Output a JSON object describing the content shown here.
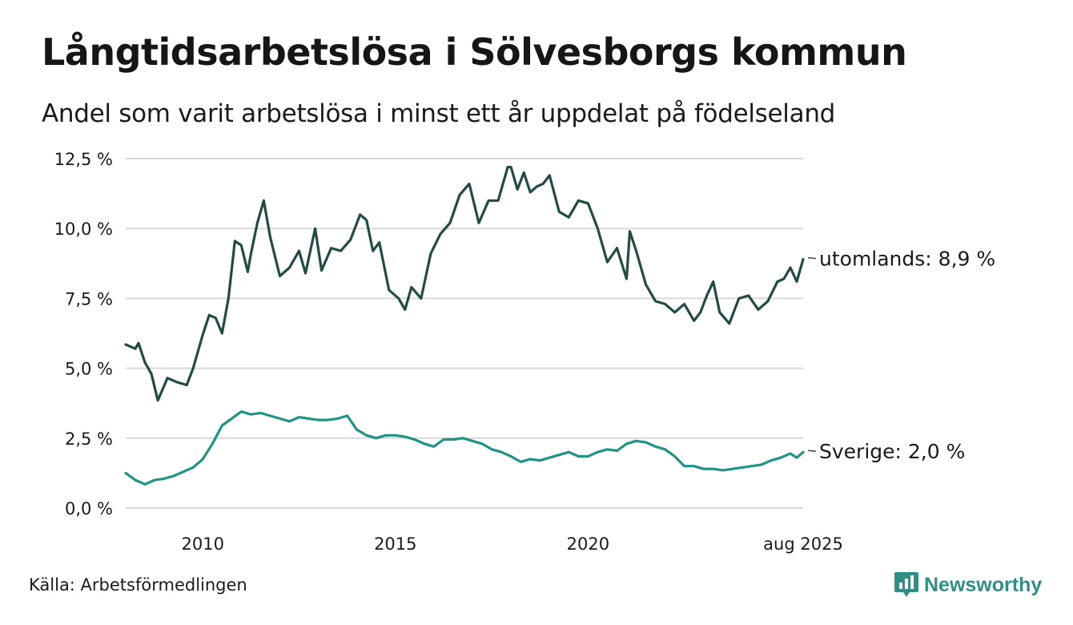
{
  "title": "Långtidsarbetslösa i Sölvesborgs kommun",
  "subtitle": "Andel som varit arbetslösa i minst ett år uppdelat på födelseland",
  "source": "Källa: Arbetsförmedlingen",
  "brand": "Newsworthy",
  "colors": {
    "utomlands": "#234b45",
    "sverige": "#1f9484",
    "grid": "#d9d9d9",
    "brand": "#2f8f86"
  },
  "chart_data": {
    "type": "line",
    "title": "Långtidsarbetslösa i Sölvesborgs kommun",
    "subtitle": "Andel som varit arbetslösa i minst ett år uppdelat på födelseland",
    "xlabel": "",
    "ylabel": "",
    "ylim": [
      0,
      12.5
    ],
    "y_ticks": [
      0,
      2.5,
      5.0,
      7.5,
      10.0,
      12.5
    ],
    "y_tick_labels": [
      "0,0 %",
      "2,5 %",
      "5,0 %",
      "7,5 %",
      "10,0 %",
      "12,5 %"
    ],
    "x_ticks": [
      "2010",
      "2015",
      "2020",
      "aug 2025"
    ],
    "x_tick_values": [
      "2010-01",
      "2015-01",
      "2020-01",
      "2025-08"
    ],
    "grid": "horizontal",
    "legend": "direct labels at line ends (right)",
    "series": [
      {
        "name": "utomlands",
        "end_label": "utomlands: 8,9 %",
        "color": "#234b45",
        "x": [
          "2008-01",
          "2008-04",
          "2008-05",
          "2008-07",
          "2008-09",
          "2008-11",
          "2009-02",
          "2009-05",
          "2009-08",
          "2009-10",
          "2010-01",
          "2010-03",
          "2010-05",
          "2010-07",
          "2010-09",
          "2010-11",
          "2011-01",
          "2011-03",
          "2011-04",
          "2011-06",
          "2011-08",
          "2011-10",
          "2012-01",
          "2012-04",
          "2012-07",
          "2012-09",
          "2012-12",
          "2013-02",
          "2013-05",
          "2013-08",
          "2013-11",
          "2014-02",
          "2014-04",
          "2014-06",
          "2014-08",
          "2014-11",
          "2015-02",
          "2015-04",
          "2015-06",
          "2015-09",
          "2015-12",
          "2016-03",
          "2016-06",
          "2016-09",
          "2016-12",
          "2017-03",
          "2017-06",
          "2017-09",
          "2017-12",
          "2018-01",
          "2018-03",
          "2018-05",
          "2018-07",
          "2018-09",
          "2018-11",
          "2019-01",
          "2019-04",
          "2019-07",
          "2019-10",
          "2020-01",
          "2020-04",
          "2020-07",
          "2020-10",
          "2021-01",
          "2021-02",
          "2021-04",
          "2021-07",
          "2021-10",
          "2022-01",
          "2022-04",
          "2022-07",
          "2022-10",
          "2022-12",
          "2023-02",
          "2023-04",
          "2023-06",
          "2023-09",
          "2023-12",
          "2024-03",
          "2024-06",
          "2024-09",
          "2024-12",
          "2025-02",
          "2025-04",
          "2025-06",
          "2025-08"
        ],
        "values": [
          5.85,
          5.7,
          5.9,
          5.2,
          4.8,
          3.85,
          4.65,
          4.5,
          4.4,
          5.0,
          6.2,
          6.9,
          6.8,
          6.25,
          7.5,
          9.55,
          9.4,
          8.45,
          9.1,
          10.2,
          11.0,
          9.7,
          8.3,
          8.6,
          9.2,
          8.4,
          10.0,
          8.5,
          9.3,
          9.2,
          9.6,
          10.5,
          10.3,
          9.2,
          9.5,
          7.8,
          7.5,
          7.1,
          7.9,
          7.5,
          9.1,
          9.8,
          10.2,
          11.2,
          11.6,
          10.2,
          11.0,
          11.0,
          12.2,
          12.2,
          11.4,
          12.0,
          11.3,
          11.5,
          11.6,
          11.9,
          10.6,
          10.4,
          11.0,
          10.9,
          10.0,
          8.8,
          9.3,
          8.2,
          9.9,
          9.2,
          8.0,
          7.4,
          7.3,
          7.0,
          7.3,
          6.7,
          7.0,
          7.6,
          8.1,
          7.0,
          6.6,
          7.5,
          7.6,
          7.1,
          7.4,
          8.1,
          8.2,
          8.6,
          8.1,
          8.9
        ]
      },
      {
        "name": "Sverige",
        "end_label": "Sverige: 2,0 %",
        "color": "#1f9484",
        "x": [
          "2008-01",
          "2008-04",
          "2008-07",
          "2008-10",
          "2009-01",
          "2009-04",
          "2009-07",
          "2009-10",
          "2010-01",
          "2010-04",
          "2010-07",
          "2010-10",
          "2011-01",
          "2011-04",
          "2011-07",
          "2011-10",
          "2012-01",
          "2012-04",
          "2012-07",
          "2012-10",
          "2013-01",
          "2013-04",
          "2013-07",
          "2013-10",
          "2014-01",
          "2014-04",
          "2014-07",
          "2014-10",
          "2015-01",
          "2015-04",
          "2015-07",
          "2015-10",
          "2016-01",
          "2016-04",
          "2016-07",
          "2016-10",
          "2017-01",
          "2017-04",
          "2017-07",
          "2017-10",
          "2018-01",
          "2018-04",
          "2018-07",
          "2018-10",
          "2019-01",
          "2019-04",
          "2019-07",
          "2019-10",
          "2020-01",
          "2020-04",
          "2020-07",
          "2020-10",
          "2021-01",
          "2021-04",
          "2021-07",
          "2021-10",
          "2022-01",
          "2022-04",
          "2022-07",
          "2022-10",
          "2023-01",
          "2023-04",
          "2023-07",
          "2023-10",
          "2024-01",
          "2024-04",
          "2024-07",
          "2024-10",
          "2025-01",
          "2025-04",
          "2025-06",
          "2025-08"
        ],
        "values": [
          1.25,
          1.0,
          0.85,
          1.0,
          1.05,
          1.15,
          1.3,
          1.45,
          1.75,
          2.3,
          2.95,
          3.2,
          3.45,
          3.35,
          3.4,
          3.3,
          3.2,
          3.1,
          3.25,
          3.2,
          3.15,
          3.15,
          3.2,
          3.3,
          2.8,
          2.6,
          2.5,
          2.6,
          2.6,
          2.55,
          2.45,
          2.3,
          2.2,
          2.45,
          2.45,
          2.5,
          2.4,
          2.3,
          2.1,
          2.0,
          1.85,
          1.65,
          1.75,
          1.7,
          1.8,
          1.9,
          2.0,
          1.85,
          1.85,
          2.0,
          2.1,
          2.05,
          2.3,
          2.4,
          2.35,
          2.2,
          2.1,
          1.85,
          1.5,
          1.5,
          1.4,
          1.4,
          1.35,
          1.4,
          1.45,
          1.5,
          1.55,
          1.7,
          1.8,
          1.95,
          1.8,
          2.0
        ]
      }
    ]
  }
}
